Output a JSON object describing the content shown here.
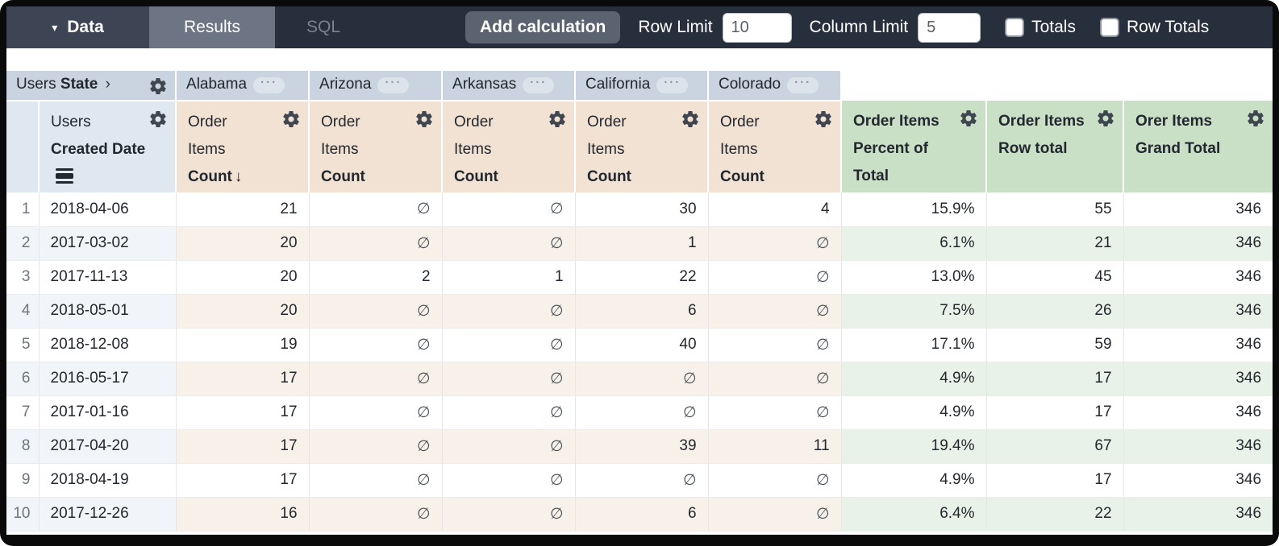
{
  "toolbar": {
    "data_label": "Data",
    "results_label": "Results",
    "sql_label": "SQL",
    "add_calculation_label": "Add calculation",
    "row_limit_label": "Row Limit",
    "row_limit_value": "10",
    "column_limit_label": "Column Limit",
    "column_limit_value": "5",
    "totals_label": "Totals",
    "row_totals_label": "Row Totals",
    "totals_checked": false,
    "row_totals_checked": false
  },
  "icons": {
    "dropdown_caret": "▾",
    "expand_chevron": "›",
    "pivot_menu_dots": "···",
    "sort_desc_arrow": "↓",
    "null_symbol": "∅",
    "gear": "gear-icon",
    "date_drill": "date-drill-icon"
  },
  "colors": {
    "toolbar_bg": "#272e3c",
    "data_tab_bg": "#3d4454",
    "results_tab_bg": "#6d7585",
    "pivot_header_bg": "#c9d4e0",
    "dimension_header_bg": "#dfe7f0",
    "measure_header_bg": "#f1e2d4",
    "calc_header_bg": "#c9dfc6",
    "even_row_dim_bg": "#f1f5f9",
    "even_row_measure_bg": "#f8f1e9",
    "even_row_calc_bg": "#e9f2e8"
  },
  "table": {
    "pivot": {
      "dimension_view": "Users",
      "dimension_field": "State",
      "values": [
        "Alabama",
        "Arizona",
        "Arkansas",
        "California",
        "Colorado"
      ]
    },
    "row_dimension": {
      "view": "Users",
      "field": "Created Date"
    },
    "measure": {
      "view": "Order Items",
      "field": "Count"
    },
    "calc_columns": [
      "Order Items Percent of Total",
      "Order Items Row total",
      "Orer Items Grand Total"
    ],
    "rows": [
      {
        "num": "1",
        "date": "2018-04-06",
        "values": [
          "21",
          "∅",
          "∅",
          "30",
          "4"
        ],
        "calcs": [
          "15.9%",
          "55",
          "346"
        ]
      },
      {
        "num": "2",
        "date": "2017-03-02",
        "values": [
          "20",
          "∅",
          "∅",
          "1",
          "∅"
        ],
        "calcs": [
          "6.1%",
          "21",
          "346"
        ]
      },
      {
        "num": "3",
        "date": "2017-11-13",
        "values": [
          "20",
          "2",
          "1",
          "22",
          "∅"
        ],
        "calcs": [
          "13.0%",
          "45",
          "346"
        ]
      },
      {
        "num": "4",
        "date": "2018-05-01",
        "values": [
          "20",
          "∅",
          "∅",
          "6",
          "∅"
        ],
        "calcs": [
          "7.5%",
          "26",
          "346"
        ]
      },
      {
        "num": "5",
        "date": "2018-12-08",
        "values": [
          "19",
          "∅",
          "∅",
          "40",
          "∅"
        ],
        "calcs": [
          "17.1%",
          "59",
          "346"
        ]
      },
      {
        "num": "6",
        "date": "2016-05-17",
        "values": [
          "17",
          "∅",
          "∅",
          "∅",
          "∅"
        ],
        "calcs": [
          "4.9%",
          "17",
          "346"
        ]
      },
      {
        "num": "7",
        "date": "2017-01-16",
        "values": [
          "17",
          "∅",
          "∅",
          "∅",
          "∅"
        ],
        "calcs": [
          "4.9%",
          "17",
          "346"
        ]
      },
      {
        "num": "8",
        "date": "2017-04-20",
        "values": [
          "17",
          "∅",
          "∅",
          "39",
          "11"
        ],
        "calcs": [
          "19.4%",
          "67",
          "346"
        ]
      },
      {
        "num": "9",
        "date": "2018-04-19",
        "values": [
          "17",
          "∅",
          "∅",
          "∅",
          "∅"
        ],
        "calcs": [
          "4.9%",
          "17",
          "346"
        ]
      },
      {
        "num": "10",
        "date": "2017-12-26",
        "values": [
          "16",
          "∅",
          "∅",
          "6",
          "∅"
        ],
        "calcs": [
          "6.4%",
          "22",
          "346"
        ]
      }
    ]
  }
}
